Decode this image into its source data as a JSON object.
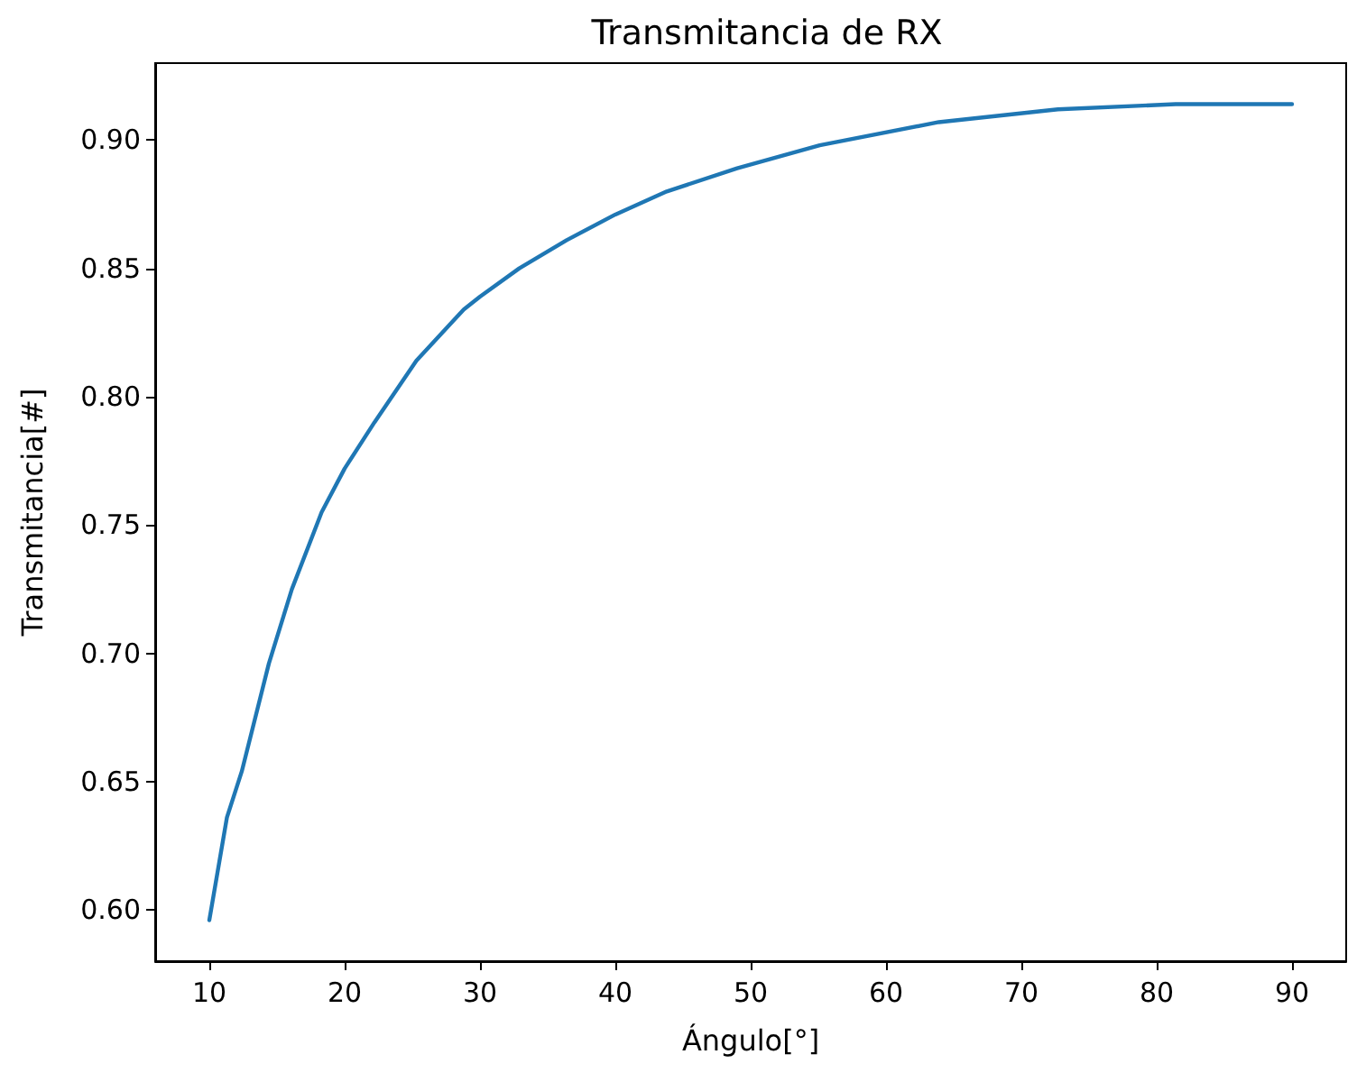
{
  "chart_data": {
    "type": "line",
    "title": "Transmitancia de RX",
    "xlabel": "Ángulo[°]",
    "ylabel": "Transmitancia[#]",
    "x": [
      10,
      11.3,
      12.4,
      14.4,
      16.1,
      18.3,
      20,
      22.2,
      25.3,
      28.8,
      30,
      32.9,
      36.4,
      40,
      43.8,
      49,
      55.1,
      63.9,
      72.7,
      81.4,
      90
    ],
    "series": [
      {
        "color": "#1f77b4",
        "values": [
          0.596,
          0.636,
          0.654,
          0.696,
          0.725,
          0.755,
          0.772,
          0.79,
          0.814,
          0.834,
          0.839,
          0.85,
          0.861,
          0.871,
          0.88,
          0.889,
          0.898,
          0.907,
          0.912,
          0.914,
          0.914
        ]
      }
    ],
    "xlim": [
      6,
      94
    ],
    "xticks": [
      10,
      20,
      30,
      40,
      50,
      60,
      70,
      80,
      90
    ],
    "ylim": [
      0.58,
      0.93
    ],
    "yticks": [
      {
        "value": 0.6,
        "label": "0.60"
      },
      0.65,
      {
        "value": 0.7,
        "label": "0.70"
      },
      0.75,
      {
        "value": 0.8,
        "label": "0.80"
      },
      0.85,
      {
        "value": 0.9,
        "label": "0.90"
      }
    ],
    "grid": false,
    "marker": "none",
    "line_style": "solid"
  }
}
